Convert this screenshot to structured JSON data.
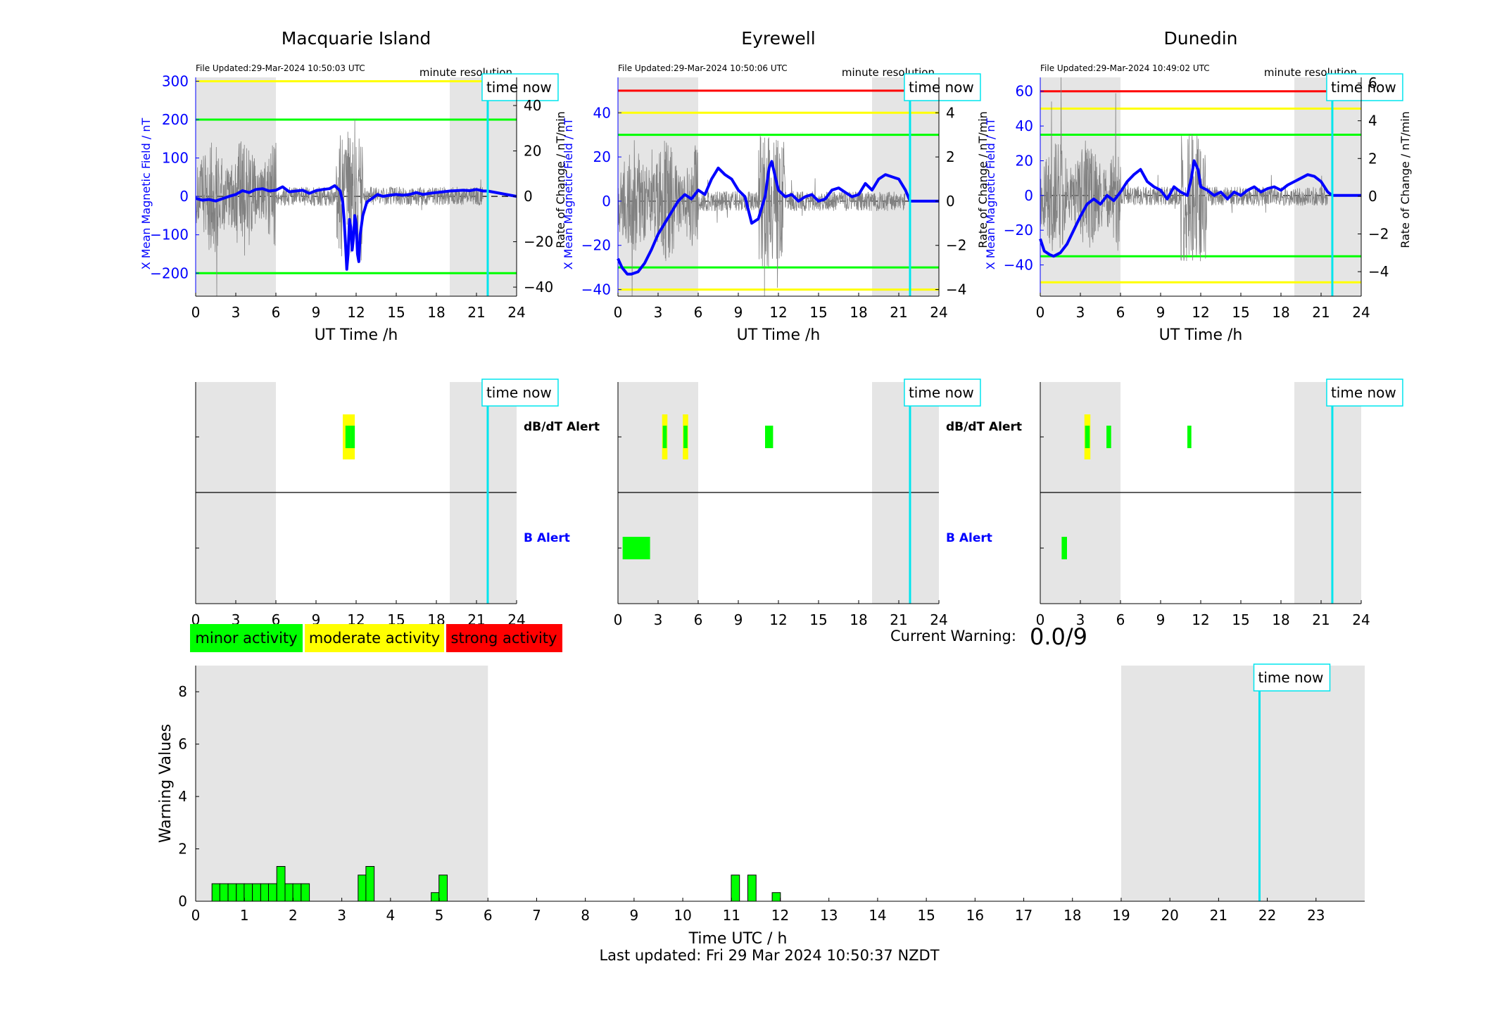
{
  "page": {
    "footer": "Last updated: Fri 29 Mar 2024 10:50:37 NZDT"
  },
  "labels": {
    "time_now": "time now",
    "minute_resolution": "minute resolution",
    "x_axis_station": "UT Time /h",
    "y_left": "X Mean Magnetic Field / nT",
    "y_right": "Rate of Change / nT/min",
    "dbdt_alert": "dB/dT Alert",
    "b_alert": "B Alert",
    "current_warning_label": "Current Warning:",
    "current_warning_value": "0.0/9"
  },
  "legend": [
    {
      "label": "minor activity",
      "color": "#00ff00"
    },
    {
      "label": "moderate activity",
      "color": "#ffff00"
    },
    {
      "label": "strong activity",
      "color": "#ff0000"
    }
  ],
  "colors": {
    "field_line": "#0000ff",
    "rate_line": "#808080",
    "time_now": "#00e5ee",
    "night_shade": "#e5e5e5",
    "minor": "#00ff00",
    "moderate": "#ffff00",
    "strong": "#ff0000"
  },
  "chart_data": [
    {
      "type": "line",
      "title": "Macquarie Island",
      "file_updated": "File Updated:29-Mar-2024 10:50:03 UTC",
      "xlabel": "UT Time /h",
      "ylabel": "X Mean Magnetic Field / nT",
      "y2label": "Rate of Change / nT/min",
      "xlim": [
        0,
        24
      ],
      "xticks": [
        0,
        3,
        6,
        9,
        12,
        15,
        18,
        21,
        24
      ],
      "ylim": [
        -260,
        310
      ],
      "yticks": [
        -200,
        -100,
        0,
        100,
        200,
        300
      ],
      "y2lim": [
        -44,
        52.4
      ],
      "y2ticks": [
        -40,
        -20,
        0,
        20,
        40
      ],
      "night_shading": [
        [
          0,
          6
        ],
        [
          19,
          24
        ]
      ],
      "time_now": 21.84,
      "thresholds": [
        {
          "y": 300,
          "color": "#ffff00"
        },
        {
          "y": 200,
          "color": "#00ff00"
        },
        {
          "y": -200,
          "color": "#00ff00"
        }
      ],
      "series": [
        {
          "x": [
            0,
            0.5,
            1,
            1.5,
            2,
            2.5,
            3,
            3.5,
            4,
            4.5,
            5,
            5.5,
            6,
            6.5,
            7,
            7.5,
            8,
            8.5,
            9,
            9.5,
            10,
            10.4,
            10.8,
            11.0,
            11.1,
            11.2,
            11.3,
            11.4,
            11.5,
            11.6,
            11.7,
            11.8,
            11.9,
            12.0,
            12.1,
            12.2,
            12.3,
            12.5,
            12.8,
            13.2,
            13.6,
            14,
            14.5,
            15,
            15.5,
            16,
            16.5,
            17,
            17.5,
            18,
            18.5,
            19,
            19.5,
            20,
            20.5,
            21,
            21.5,
            21.84,
            24
          ],
          "y": [
            -5,
            -10,
            -8,
            -12,
            -6,
            0,
            5,
            15,
            10,
            18,
            20,
            14,
            16,
            25,
            12,
            14,
            16,
            8,
            15,
            18,
            20,
            28,
            15,
            -15,
            -60,
            -120,
            -190,
            -150,
            -60,
            -80,
            -140,
            -110,
            -50,
            -70,
            -150,
            -170,
            -100,
            -50,
            -15,
            -5,
            5,
            0,
            3,
            5,
            3,
            5,
            10,
            5,
            8,
            10,
            12,
            14,
            15,
            16,
            15,
            18,
            14,
            14,
            0
          ]
        }
      ]
    },
    {
      "type": "line",
      "title": "Eyrewell",
      "file_updated": "File Updated:29-Mar-2024 10:50:06 UTC",
      "xlabel": "UT Time /h",
      "ylabel": "X Mean Magnetic Field / nT",
      "y2label": "Rate of Change / nT/min",
      "xlim": [
        0,
        24
      ],
      "xticks": [
        0,
        3,
        6,
        9,
        12,
        15,
        18,
        21,
        24
      ],
      "ylim": [
        -43,
        56
      ],
      "yticks": [
        -40,
        -20,
        0,
        20,
        40
      ],
      "y2lim": [
        -4.3,
        5.6
      ],
      "y2ticks": [
        -4,
        -2,
        0,
        2,
        4
      ],
      "night_shading": [
        [
          0,
          6
        ],
        [
          19,
          24
        ]
      ],
      "time_now": 21.84,
      "thresholds": [
        {
          "y": 50,
          "color": "#ff0000"
        },
        {
          "y": 40,
          "color": "#ffff00"
        },
        {
          "y": 30,
          "color": "#00ff00"
        },
        {
          "y": -30,
          "color": "#00ff00"
        },
        {
          "y": -40,
          "color": "#ffff00"
        }
      ],
      "series": [
        {
          "x": [
            0,
            0.3,
            0.7,
            1,
            1.5,
            2,
            2.5,
            3,
            3.5,
            4,
            4.5,
            5,
            5.5,
            6,
            6.5,
            7,
            7.5,
            8,
            8.5,
            9,
            9.5,
            10,
            10.5,
            11,
            11.3,
            11.5,
            11.8,
            12,
            12.5,
            13,
            13.5,
            14,
            14.5,
            15,
            15.5,
            16,
            16.5,
            17,
            17.5,
            18,
            18.5,
            19,
            19.5,
            20,
            20.5,
            21,
            21.5,
            21.84,
            24
          ],
          "y": [
            -26,
            -30,
            -33,
            -33,
            -32,
            -28,
            -22,
            -15,
            -10,
            -5,
            0,
            3,
            1,
            5,
            3,
            10,
            15,
            12,
            10,
            5,
            2,
            -10,
            -8,
            2,
            15,
            18,
            10,
            5,
            2,
            3,
            0,
            2,
            3,
            0,
            1,
            5,
            6,
            4,
            2,
            3,
            8,
            5,
            10,
            12,
            11,
            10,
            5,
            0,
            0
          ]
        }
      ]
    },
    {
      "type": "line",
      "title": "Dunedin",
      "file_updated": "File Updated:29-Mar-2024 10:49:02 UTC",
      "xlabel": "UT Time /h",
      "ylabel": "X Mean Magnetic Field / nT",
      "y2label": "Rate of Change / nT/min",
      "xlim": [
        0,
        24
      ],
      "xticks": [
        0,
        3,
        6,
        9,
        12,
        15,
        18,
        21,
        24
      ],
      "ylim": [
        -58,
        68
      ],
      "yticks": [
        -40,
        -20,
        0,
        20,
        40,
        60
      ],
      "y2lim": [
        -5.3,
        6.3
      ],
      "y2ticks": [
        -4,
        -2,
        0,
        2,
        4,
        6
      ],
      "night_shading": [
        [
          0,
          6
        ],
        [
          19,
          24
        ]
      ],
      "time_now": 21.84,
      "thresholds": [
        {
          "y": 60,
          "color": "#ff0000"
        },
        {
          "y": 50,
          "color": "#ffff00"
        },
        {
          "y": 35,
          "color": "#00ff00"
        },
        {
          "y": -35,
          "color": "#00ff00"
        },
        {
          "y": -50,
          "color": "#ffff00"
        }
      ],
      "series": [
        {
          "x": [
            0,
            0.3,
            0.7,
            1,
            1.5,
            2,
            2.5,
            3,
            3.5,
            4,
            4.5,
            5,
            5.5,
            6,
            6.5,
            7,
            7.5,
            8,
            8.5,
            9,
            9.5,
            10,
            10.5,
            11,
            11.3,
            11.5,
            11.8,
            12,
            12.5,
            13,
            13.5,
            14,
            14.5,
            15,
            15.5,
            16,
            16.5,
            17,
            17.5,
            18,
            18.5,
            19,
            19.5,
            20,
            20.5,
            21,
            21.5,
            21.84,
            24
          ],
          "y": [
            -25,
            -32,
            -34,
            -35,
            -33,
            -28,
            -20,
            -12,
            -5,
            -2,
            -5,
            0,
            -3,
            2,
            8,
            12,
            15,
            8,
            5,
            3,
            -2,
            5,
            2,
            0,
            10,
            20,
            15,
            5,
            3,
            0,
            2,
            -2,
            2,
            0,
            3,
            5,
            2,
            4,
            5,
            3,
            6,
            8,
            10,
            12,
            11,
            8,
            2,
            0,
            0
          ]
        }
      ]
    },
    {
      "type": "alert_timeline",
      "station": "Macquarie Island",
      "xlim": [
        0,
        24
      ],
      "xticks": [
        0,
        3,
        6,
        9,
        12,
        15,
        18,
        21,
        24
      ],
      "rows": [
        "dB/dT Alert",
        "B Alert"
      ],
      "night_shading": [
        [
          0,
          6
        ],
        [
          19,
          24
        ]
      ],
      "time_now": 21.84,
      "events": [
        {
          "row": 0,
          "start": 11.0,
          "end": 11.9,
          "level": "moderate"
        },
        {
          "row": 0,
          "start": 11.2,
          "end": 11.6,
          "level": "minor"
        },
        {
          "row": 0,
          "start": 11.6,
          "end": 11.9,
          "level": "minor"
        }
      ]
    },
    {
      "type": "alert_timeline",
      "station": "Eyrewell",
      "xlim": [
        0,
        24
      ],
      "xticks": [
        0,
        3,
        6,
        9,
        12,
        15,
        18,
        21,
        24
      ],
      "rows": [
        "dB/dT Alert",
        "B Alert"
      ],
      "night_shading": [
        [
          0,
          6
        ],
        [
          19,
          24
        ]
      ],
      "time_now": 21.84,
      "events": [
        {
          "row": 0,
          "start": 3.3,
          "end": 3.7,
          "level": "moderate"
        },
        {
          "row": 0,
          "start": 3.35,
          "end": 3.65,
          "level": "minor"
        },
        {
          "row": 0,
          "start": 4.85,
          "end": 5.25,
          "level": "moderate"
        },
        {
          "row": 0,
          "start": 4.9,
          "end": 5.2,
          "level": "minor"
        },
        {
          "row": 0,
          "start": 11.0,
          "end": 11.6,
          "level": "minor"
        },
        {
          "row": 1,
          "start": 0.35,
          "end": 2.4,
          "level": "minor"
        }
      ]
    },
    {
      "type": "alert_timeline",
      "station": "Dunedin",
      "xlim": [
        0,
        24
      ],
      "xticks": [
        0,
        3,
        6,
        9,
        12,
        15,
        18,
        21,
        24
      ],
      "rows": [
        "dB/dT Alert",
        "B Alert"
      ],
      "night_shading": [
        [
          0,
          6
        ],
        [
          19,
          24
        ]
      ],
      "time_now": 21.84,
      "events": [
        {
          "row": 0,
          "start": 3.3,
          "end": 3.75,
          "level": "moderate"
        },
        {
          "row": 0,
          "start": 3.35,
          "end": 3.7,
          "level": "minor"
        },
        {
          "row": 0,
          "start": 4.95,
          "end": 5.3,
          "level": "minor"
        },
        {
          "row": 0,
          "start": 11.0,
          "end": 11.3,
          "level": "minor"
        },
        {
          "row": 1,
          "start": 1.6,
          "end": 2.0,
          "level": "minor"
        }
      ]
    },
    {
      "type": "bar",
      "title": "",
      "xlabel": "Time UTC / h",
      "ylabel": "Warning Values",
      "xlim": [
        0,
        24
      ],
      "xticks": [
        0,
        1,
        2,
        3,
        4,
        5,
        6,
        7,
        8,
        9,
        10,
        11,
        12,
        13,
        14,
        15,
        16,
        17,
        18,
        19,
        20,
        21,
        22,
        23
      ],
      "ylim": [
        0,
        9
      ],
      "yticks": [
        0,
        2,
        4,
        6,
        8
      ],
      "night_shading": [
        [
          0,
          6
        ],
        [
          19,
          24
        ]
      ],
      "time_now": 21.84,
      "bar_width": 0.17,
      "x": [
        0.42,
        0.58,
        0.75,
        0.92,
        1.08,
        1.25,
        1.42,
        1.58,
        1.75,
        1.92,
        2.08,
        2.25,
        3.42,
        3.58,
        4.92,
        5.08,
        11.08,
        11.42,
        11.92
      ],
      "values": [
        0.67,
        0.67,
        0.67,
        0.67,
        0.67,
        0.67,
        0.67,
        0.67,
        1.33,
        0.67,
        0.67,
        0.67,
        1.0,
        1.33,
        0.33,
        1.0,
        1.0,
        1.0,
        0.33
      ]
    }
  ]
}
